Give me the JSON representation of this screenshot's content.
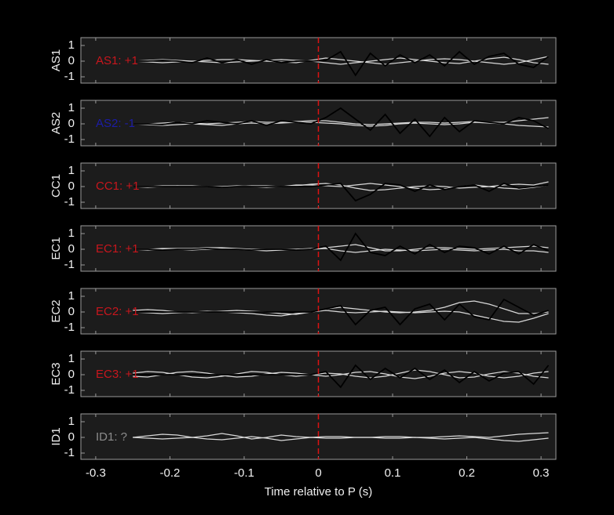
{
  "chart_data": [
    {
      "type": "line",
      "ylabel": "AS1",
      "annotation": {
        "text": "AS1: +1",
        "color": "#c8161d"
      },
      "vline": {
        "x": 0,
        "color": "#dd1111"
      },
      "xlim": [
        -0.32,
        0.32
      ],
      "xticks": [
        -0.3,
        -0.2,
        -0.1,
        0,
        0.1,
        0.2,
        0.3
      ],
      "ylim": [
        -1.4,
        1.5
      ],
      "yticks": [
        1,
        0,
        -1
      ],
      "x": [
        -0.25,
        -0.23,
        -0.21,
        -0.19,
        -0.17,
        -0.15,
        -0.13,
        -0.11,
        -0.09,
        -0.07,
        -0.05,
        -0.03,
        -0.01,
        0.01,
        0.03,
        0.05,
        0.07,
        0.09,
        0.11,
        0.13,
        0.15,
        0.17,
        0.19,
        0.21,
        0.23,
        0.25,
        0.27,
        0.29,
        0.31
      ],
      "series": [
        {
          "color": "#d9d9d9",
          "values": [
            0,
            0.05,
            0.1,
            0.05,
            0,
            -0.05,
            -0.1,
            -0.05,
            0,
            0.05,
            0.1,
            0.05,
            0,
            -0.1,
            -0.2,
            -0.1,
            0,
            0.1,
            0.2,
            0.1,
            0,
            -0.1,
            -0.15,
            0,
            0.15,
            0.25,
            0.1,
            -0.1,
            -0.2
          ]
        },
        {
          "color": "#d9d9d9",
          "values": [
            0,
            -0.05,
            -0.1,
            -0.05,
            0,
            0.05,
            0.1,
            0.1,
            0.05,
            0,
            -0.05,
            -0.1,
            0.05,
            0.2,
            0.1,
            0,
            -0.1,
            -0.2,
            -0.1,
            0,
            0.1,
            0.15,
            0.1,
            0,
            -0.1,
            -0.2,
            -0.1,
            0.1,
            0.3
          ]
        },
        {
          "color": "#000000",
          "values": [
            0,
            0,
            0.05,
            0,
            -0.1,
            0.2,
            -0.1,
            0.1,
            -0.2,
            0.1,
            -0.1,
            0,
            0,
            0.05,
            0.6,
            -0.9,
            0.5,
            -0.3,
            0.4,
            -0.1,
            0.4,
            -0.3,
            0.6,
            -0.2,
            0.3,
            0.5,
            -0.2,
            -0.4,
            0.3
          ]
        }
      ]
    },
    {
      "type": "line",
      "ylabel": "AS2",
      "annotation": {
        "text": "AS2: -1",
        "color": "#1c1ca6"
      },
      "vline": {
        "x": 0,
        "color": "#dd1111"
      },
      "xlim": [
        -0.32,
        0.32
      ],
      "xticks": [
        -0.3,
        -0.2,
        -0.1,
        0,
        0.1,
        0.2,
        0.3
      ],
      "ylim": [
        -1.4,
        1.5
      ],
      "yticks": [
        1,
        0,
        -1
      ],
      "x": [
        -0.25,
        -0.23,
        -0.21,
        -0.19,
        -0.17,
        -0.15,
        -0.13,
        -0.11,
        -0.09,
        -0.07,
        -0.05,
        -0.03,
        -0.01,
        0.01,
        0.03,
        0.05,
        0.07,
        0.09,
        0.11,
        0.13,
        0.15,
        0.17,
        0.19,
        0.21,
        0.23,
        0.25,
        0.27,
        0.29,
        0.31
      ],
      "series": [
        {
          "color": "#d9d9d9",
          "values": [
            0,
            0,
            0.05,
            0.1,
            0.05,
            0,
            0.05,
            0.1,
            0.15,
            0.1,
            0.1,
            0.15,
            0.2,
            0.2,
            0.1,
            0,
            -0.05,
            0,
            0.05,
            0.1,
            0.1,
            0.05,
            0.1,
            0.15,
            0.1,
            0.1,
            0.2,
            0.3,
            0.4
          ]
        },
        {
          "color": "#d9d9d9",
          "values": [
            0,
            -0.05,
            -0.1,
            -0.05,
            0,
            -0.05,
            -0.1,
            0,
            0.05,
            0,
            0.05,
            0.1,
            0.1,
            0.05,
            0,
            -0.1,
            -0.15,
            -0.1,
            0,
            0.05,
            0,
            -0.05,
            0,
            0.1,
            0.05,
            0,
            -0.1,
            -0.15,
            -0.2
          ]
        },
        {
          "color": "#000000",
          "values": [
            0,
            0,
            -0.05,
            0.1,
            0,
            0.2,
            0.1,
            0,
            0.2,
            -0.1,
            0.2,
            0.1,
            0,
            0.4,
            1.0,
            0.3,
            -0.4,
            0.6,
            -0.6,
            0.3,
            -0.8,
            0.4,
            -0.5,
            0.2,
            0.1,
            0,
            0.4,
            0.2,
            -0.3
          ]
        }
      ]
    },
    {
      "type": "line",
      "ylabel": "CC1",
      "annotation": {
        "text": "CC1: +1",
        "color": "#c8161d"
      },
      "vline": {
        "x": 0,
        "color": "#dd1111"
      },
      "xlim": [
        -0.32,
        0.32
      ],
      "xticks": [
        -0.3,
        -0.2,
        -0.1,
        0,
        0.1,
        0.2,
        0.3
      ],
      "ylim": [
        -1.4,
        1.5
      ],
      "yticks": [
        1,
        0,
        -1
      ],
      "x": [
        -0.25,
        -0.23,
        -0.21,
        -0.19,
        -0.17,
        -0.15,
        -0.13,
        -0.11,
        -0.09,
        -0.07,
        -0.05,
        -0.03,
        -0.01,
        0.01,
        0.03,
        0.05,
        0.07,
        0.09,
        0.11,
        0.13,
        0.15,
        0.17,
        0.19,
        0.21,
        0.23,
        0.25,
        0.27,
        0.29,
        0.31
      ],
      "series": [
        {
          "color": "#d9d9d9",
          "values": [
            0,
            0,
            0.05,
            0.05,
            0,
            0,
            -0.05,
            0,
            0.05,
            0.05,
            0,
            0.05,
            0.15,
            0.2,
            0.1,
            -0.1,
            -0.25,
            -0.2,
            -0.1,
            0,
            0.05,
            0,
            -0.1,
            -0.05,
            0,
            0.1,
            0.15,
            0.1,
            0.3
          ]
        },
        {
          "color": "#d9d9d9",
          "values": [
            0,
            -0.05,
            0,
            0.05,
            0.05,
            0,
            0,
            0.05,
            0,
            -0.05,
            0,
            0.1,
            0.1,
            0.05,
            0,
            0.1,
            0.2,
            0.1,
            0,
            -0.1,
            -0.2,
            -0.15,
            0,
            0.1,
            0,
            -0.1,
            -0.15,
            -0.05,
            0.1
          ]
        },
        {
          "color": "#000000",
          "values": [
            0,
            0,
            0,
            0,
            0,
            0,
            -0.05,
            0,
            0,
            0,
            0,
            0,
            0,
            0.1,
            0.2,
            -0.9,
            -0.5,
            0.2,
            0.1,
            -0.3,
            0.1,
            -0.2,
            0,
            0.1,
            -0.3,
            0.2,
            -0.1,
            0,
            0.1
          ]
        }
      ]
    },
    {
      "type": "line",
      "ylabel": "EC1",
      "annotation": {
        "text": "EC1: +1",
        "color": "#c8161d"
      },
      "vline": {
        "x": 0,
        "color": "#dd1111"
      },
      "xlim": [
        -0.32,
        0.32
      ],
      "xticks": [
        -0.3,
        -0.2,
        -0.1,
        0,
        0.1,
        0.2,
        0.3
      ],
      "ylim": [
        -1.4,
        1.5
      ],
      "yticks": [
        1,
        0,
        -1
      ],
      "x": [
        -0.25,
        -0.23,
        -0.21,
        -0.19,
        -0.17,
        -0.15,
        -0.13,
        -0.11,
        -0.09,
        -0.07,
        -0.05,
        -0.03,
        -0.01,
        0.01,
        0.03,
        0.05,
        0.07,
        0.09,
        0.11,
        0.13,
        0.15,
        0.17,
        0.19,
        0.21,
        0.23,
        0.25,
        0.27,
        0.29,
        0.31
      ],
      "series": [
        {
          "color": "#d9d9d9",
          "values": [
            0,
            0,
            0.05,
            0.05,
            0.05,
            0.1,
            0.1,
            0.05,
            0,
            0,
            0,
            0,
            0.05,
            0.1,
            0.2,
            0.3,
            0.1,
            -0.1,
            -0.1,
            0,
            0.1,
            0.1,
            0.05,
            0,
            0.05,
            0.1,
            0.15,
            0.2,
            0.1
          ]
        },
        {
          "color": "#d9d9d9",
          "values": [
            0,
            -0.05,
            0,
            0,
            -0.05,
            0,
            0.05,
            0,
            -0.05,
            -0.1,
            -0.05,
            0,
            0,
            0.05,
            -0.1,
            -0.2,
            -0.1,
            0,
            -0.05,
            -0.1,
            -0.05,
            0,
            -0.05,
            -0.1,
            -0.05,
            0,
            -0.1,
            -0.1,
            -0.2
          ]
        },
        {
          "color": "#000000",
          "values": [
            0,
            0,
            -0.05,
            0,
            0,
            0.05,
            0,
            0,
            -0.05,
            0,
            0,
            -0.05,
            0,
            0.2,
            -0.7,
            1.0,
            -0.2,
            -0.4,
            0.2,
            -0.3,
            0.3,
            -0.2,
            0.2,
            0.1,
            -0.3,
            0.2,
            -0.3,
            0.3,
            -0.1
          ]
        }
      ]
    },
    {
      "type": "line",
      "ylabel": "EC2",
      "annotation": {
        "text": "EC2: +1",
        "color": "#c8161d"
      },
      "vline": {
        "x": 0,
        "color": "#dd1111"
      },
      "xlim": [
        -0.32,
        0.32
      ],
      "xticks": [
        -0.3,
        -0.2,
        -0.1,
        0,
        0.1,
        0.2,
        0.3
      ],
      "ylim": [
        -1.4,
        1.5
      ],
      "yticks": [
        1,
        0,
        -1
      ],
      "x": [
        -0.25,
        -0.23,
        -0.21,
        -0.19,
        -0.17,
        -0.15,
        -0.13,
        -0.11,
        -0.09,
        -0.07,
        -0.05,
        -0.03,
        -0.01,
        0.01,
        0.03,
        0.05,
        0.07,
        0.09,
        0.11,
        0.13,
        0.15,
        0.17,
        0.19,
        0.21,
        0.23,
        0.25,
        0.27,
        0.29,
        0.31
      ],
      "series": [
        {
          "color": "#d9d9d9",
          "values": [
            0.1,
            0.15,
            0.1,
            0,
            -0.05,
            0,
            0.05,
            0.1,
            0.05,
            0,
            -0.1,
            -0.15,
            0,
            0.2,
            0.3,
            0.2,
            0.1,
            0,
            -0.05,
            0,
            0.1,
            0.3,
            0.6,
            0.7,
            0.5,
            0.2,
            -0.1,
            -0.1,
            0
          ]
        },
        {
          "color": "#d9d9d9",
          "values": [
            0,
            -0.05,
            -0.1,
            -0.05,
            0,
            0.05,
            0,
            -0.05,
            -0.1,
            -0.2,
            -0.25,
            -0.1,
            0,
            0.1,
            0,
            -0.05,
            0,
            0.05,
            0,
            -0.05,
            0,
            0.05,
            0,
            -0.2,
            -0.4,
            -0.6,
            -0.65,
            -0.4,
            -0.1
          ]
        },
        {
          "color": "#000000",
          "values": [
            0,
            0,
            0,
            0,
            0,
            0,
            0,
            0,
            0,
            0,
            0,
            0,
            0,
            0.2,
            0.4,
            -0.8,
            0.1,
            0.3,
            -0.8,
            0.2,
            0.5,
            -0.5,
            0.5,
            -0.3,
            -0.5,
            0.8,
            0.3,
            -0.2,
            0.1
          ]
        }
      ]
    },
    {
      "type": "line",
      "ylabel": "EC3",
      "annotation": {
        "text": "EC3: +1",
        "color": "#c8161d"
      },
      "vline": {
        "x": 0,
        "color": "#dd1111"
      },
      "xlim": [
        -0.32,
        0.32
      ],
      "xticks": [
        -0.3,
        -0.2,
        -0.1,
        0,
        0.1,
        0.2,
        0.3
      ],
      "ylim": [
        -1.4,
        1.5
      ],
      "yticks": [
        1,
        0,
        -1
      ],
      "x": [
        -0.25,
        -0.23,
        -0.21,
        -0.19,
        -0.17,
        -0.15,
        -0.13,
        -0.11,
        -0.09,
        -0.07,
        -0.05,
        -0.03,
        -0.01,
        0.01,
        0.03,
        0.05,
        0.07,
        0.09,
        0.11,
        0.13,
        0.15,
        0.17,
        0.19,
        0.21,
        0.23,
        0.25,
        0.27,
        0.29,
        0.31
      ],
      "series": [
        {
          "color": "#d9d9d9",
          "values": [
            0.1,
            0.2,
            0.15,
            0,
            -0.15,
            -0.2,
            -0.1,
            0.05,
            0.2,
            0.15,
            0,
            -0.1,
            0,
            0.1,
            0.05,
            -0.1,
            -0.2,
            -0.1,
            0.1,
            0.3,
            0.2,
            0,
            -0.2,
            -0.15,
            0.05,
            0.2,
            0.1,
            -0.1,
            -0.2
          ]
        },
        {
          "color": "#d9d9d9",
          "values": [
            -0.1,
            -0.15,
            0,
            0.15,
            0.2,
            0.1,
            -0.05,
            -0.15,
            -0.1,
            0.05,
            0.15,
            0.1,
            0,
            -0.1,
            0,
            0.15,
            0.2,
            0.05,
            -0.15,
            -0.25,
            -0.1,
            0.1,
            0.2,
            0.1,
            -0.1,
            -0.2,
            -0.1,
            0.1,
            0.2
          ]
        },
        {
          "color": "#000000",
          "values": [
            0,
            0,
            0,
            0,
            0,
            0,
            0,
            0,
            0,
            0,
            0,
            0,
            0,
            0.2,
            -0.8,
            0.6,
            -0.3,
            0.4,
            -0.2,
            0.4,
            -0.3,
            0.3,
            -0.5,
            0.2,
            -0.4,
            0.1,
            0.2,
            -0.6,
            0.6
          ]
        }
      ]
    },
    {
      "type": "line",
      "ylabel": "ID1",
      "annotation": {
        "text": "ID1: ?",
        "color": "#8c8c8c"
      },
      "vline": {
        "x": 0,
        "color": "#dd1111"
      },
      "xlim": [
        -0.32,
        0.32
      ],
      "xticks": [
        -0.3,
        -0.2,
        -0.1,
        0,
        0.1,
        0.2,
        0.3
      ],
      "ylim": [
        -1.4,
        1.5
      ],
      "yticks": [
        1,
        0,
        -1
      ],
      "xlabel": "Time relative to P (s)",
      "x": [
        -0.25,
        -0.23,
        -0.21,
        -0.19,
        -0.17,
        -0.15,
        -0.13,
        -0.11,
        -0.09,
        -0.07,
        -0.05,
        -0.03,
        -0.01,
        0.01,
        0.03,
        0.05,
        0.07,
        0.09,
        0.11,
        0.13,
        0.15,
        0.17,
        0.19,
        0.21,
        0.23,
        0.25,
        0.27,
        0.29,
        0.31
      ],
      "series": [
        {
          "color": "#d9d9d9",
          "values": [
            0,
            0.1,
            0.2,
            0.15,
            0,
            0.1,
            0.25,
            0.1,
            -0.1,
            0,
            0.15,
            0.05,
            0,
            0.05,
            0.05,
            0,
            0,
            0.05,
            0.05,
            0,
            0,
            0.05,
            0.1,
            0.05,
            0,
            0.1,
            0.2,
            0.25,
            0.3
          ]
        },
        {
          "color": "#d9d9d9",
          "values": [
            0,
            -0.05,
            -0.1,
            -0.05,
            0,
            -0.1,
            -0.15,
            -0.05,
            0.05,
            -0.05,
            -0.2,
            -0.1,
            0,
            -0.05,
            -0.05,
            0,
            0,
            -0.05,
            -0.05,
            0,
            -0.05,
            -0.1,
            -0.05,
            0,
            -0.1,
            -0.2,
            -0.25,
            -0.15,
            -0.05
          ]
        }
      ]
    }
  ]
}
